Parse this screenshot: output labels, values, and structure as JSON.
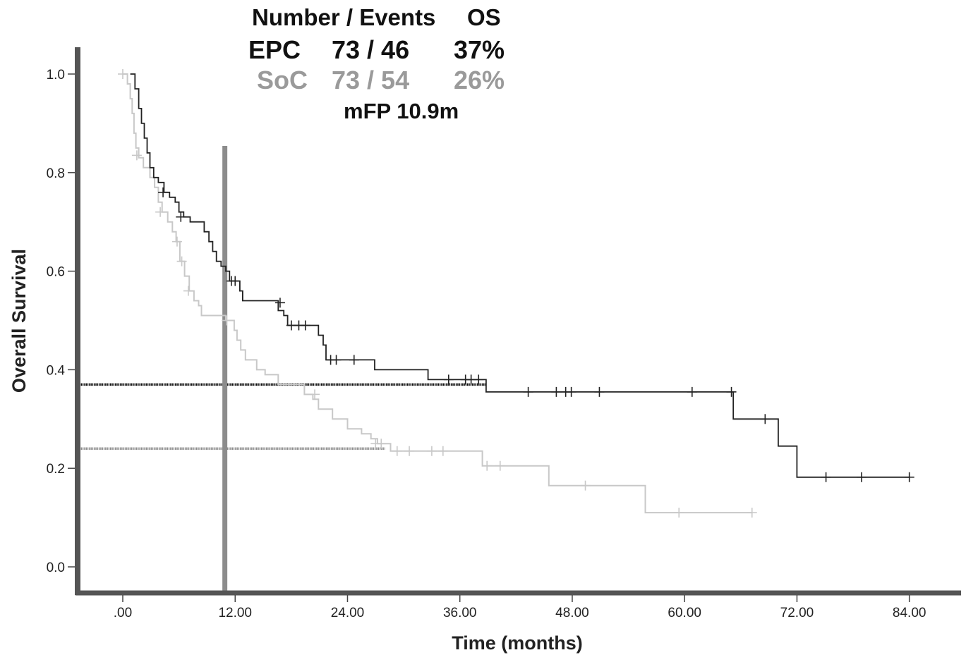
{
  "header": {
    "col_number_events": "Number / Events",
    "col_os": "OS",
    "median_fp": "mFP 10.9m"
  },
  "groups": [
    {
      "name": "EPC",
      "number_events": "73 / 46",
      "os": "37%",
      "color": "#111111"
    },
    {
      "name": "SoC",
      "number_events": "73 / 54",
      "os": "26%",
      "color": "#9a9a9a"
    }
  ],
  "chart_data": {
    "type": "line",
    "subtype": "kaplan-meier step",
    "xlabel": "Time (months)",
    "ylabel": "Overall Survival",
    "xlim": [
      -5,
      86
    ],
    "ylim": [
      -0.06,
      1.07
    ],
    "x_ticks": [
      0,
      12,
      24,
      36,
      48,
      60,
      72,
      84
    ],
    "x_tick_labels": [
      ".00",
      "12.00",
      "24.00",
      "36.00",
      "48.00",
      "60.00",
      "72.00",
      "84.00"
    ],
    "y_ticks": [
      0.0,
      0.2,
      0.4,
      0.6,
      0.8,
      1.0
    ],
    "y_tick_labels": [
      "0.0",
      "0.2",
      "0.4",
      "0.6",
      "0.8",
      "1.0"
    ],
    "grid": false,
    "series": [
      {
        "name": "EPC",
        "color": "#222222",
        "steps": [
          [
            0.8,
            1.0
          ],
          [
            1.3,
            0.97
          ],
          [
            1.7,
            0.93
          ],
          [
            2.0,
            0.9
          ],
          [
            2.3,
            0.87
          ],
          [
            2.6,
            0.84
          ],
          [
            2.9,
            0.81
          ],
          [
            3.3,
            0.79
          ],
          [
            3.8,
            0.78
          ],
          [
            4.4,
            0.76
          ],
          [
            5.0,
            0.75
          ],
          [
            5.6,
            0.74
          ],
          [
            6.0,
            0.72
          ],
          [
            6.5,
            0.71
          ],
          [
            7.2,
            0.7
          ],
          [
            8.7,
            0.68
          ],
          [
            9.2,
            0.66
          ],
          [
            9.6,
            0.64
          ],
          [
            10.0,
            0.62
          ],
          [
            10.5,
            0.61
          ],
          [
            11.0,
            0.6
          ],
          [
            11.4,
            0.58
          ],
          [
            12.5,
            0.56
          ],
          [
            12.8,
            0.54
          ],
          [
            16.6,
            0.52
          ],
          [
            17.2,
            0.51
          ],
          [
            17.6,
            0.49
          ],
          [
            20.9,
            0.47
          ],
          [
            21.4,
            0.45
          ],
          [
            21.7,
            0.42
          ],
          [
            26.9,
            0.4
          ],
          [
            32.6,
            0.38
          ],
          [
            38.8,
            0.355
          ],
          [
            65.2,
            0.3
          ],
          [
            70.0,
            0.245
          ],
          [
            72.0,
            0.182
          ],
          [
            84.0,
            0.182
          ]
        ],
        "censored": [
          [
            4.3,
            0.76
          ],
          [
            6.2,
            0.71
          ],
          [
            11.6,
            0.58
          ],
          [
            12.0,
            0.58
          ],
          [
            16.8,
            0.536
          ],
          [
            18.0,
            0.49
          ],
          [
            18.8,
            0.49
          ],
          [
            19.5,
            0.49
          ],
          [
            22.2,
            0.42
          ],
          [
            22.8,
            0.42
          ],
          [
            24.7,
            0.42
          ],
          [
            34.8,
            0.38
          ],
          [
            36.6,
            0.38
          ],
          [
            37.2,
            0.38
          ],
          [
            38.0,
            0.38
          ],
          [
            43.3,
            0.355
          ],
          [
            46.3,
            0.355
          ],
          [
            47.3,
            0.355
          ],
          [
            47.9,
            0.355
          ],
          [
            50.9,
            0.355
          ],
          [
            60.8,
            0.355
          ],
          [
            65.0,
            0.355
          ],
          [
            68.6,
            0.3
          ],
          [
            75.1,
            0.182
          ],
          [
            78.9,
            0.182
          ],
          [
            84.0,
            0.182
          ]
        ],
        "median_os_line": 0.37
      },
      {
        "name": "SoC",
        "color": "#c8c8c8",
        "steps": [
          [
            0,
            1.0
          ],
          [
            0.5,
            0.98
          ],
          [
            0.8,
            0.95
          ],
          [
            1.0,
            0.92
          ],
          [
            1.2,
            0.88
          ],
          [
            1.4,
            0.85
          ],
          [
            1.7,
            0.83
          ],
          [
            2.2,
            0.81
          ],
          [
            2.9,
            0.79
          ],
          [
            3.4,
            0.77
          ],
          [
            3.8,
            0.74
          ],
          [
            4.2,
            0.72
          ],
          [
            4.8,
            0.7
          ],
          [
            5.3,
            0.68
          ],
          [
            5.7,
            0.66
          ],
          [
            6.1,
            0.62
          ],
          [
            6.6,
            0.59
          ],
          [
            7.1,
            0.56
          ],
          [
            7.6,
            0.54
          ],
          [
            8.1,
            0.53
          ],
          [
            8.4,
            0.51
          ],
          [
            11.0,
            0.5
          ],
          [
            11.9,
            0.48
          ],
          [
            12.2,
            0.46
          ],
          [
            12.6,
            0.44
          ],
          [
            13.1,
            0.42
          ],
          [
            14.3,
            0.4
          ],
          [
            15.2,
            0.39
          ],
          [
            16.6,
            0.37
          ],
          [
            19.4,
            0.35
          ],
          [
            20.3,
            0.34
          ],
          [
            20.9,
            0.32
          ],
          [
            22.4,
            0.3
          ],
          [
            24.0,
            0.28
          ],
          [
            25.5,
            0.27
          ],
          [
            26.5,
            0.26
          ],
          [
            27.2,
            0.25
          ],
          [
            28.6,
            0.235
          ],
          [
            38.4,
            0.205
          ],
          [
            45.5,
            0.165
          ],
          [
            55.8,
            0.11
          ],
          [
            67.2,
            0.11
          ]
        ],
        "censored": [
          [
            0,
            1.0
          ],
          [
            1.5,
            0.835
          ],
          [
            4.0,
            0.72
          ],
          [
            5.8,
            0.66
          ],
          [
            6.3,
            0.62
          ],
          [
            7.0,
            0.56
          ],
          [
            11.1,
            0.5
          ],
          [
            20.5,
            0.35
          ],
          [
            27.0,
            0.25
          ],
          [
            27.6,
            0.25
          ],
          [
            29.3,
            0.235
          ],
          [
            30.6,
            0.235
          ],
          [
            33.0,
            0.235
          ],
          [
            34.2,
            0.235
          ],
          [
            38.9,
            0.205
          ],
          [
            40.3,
            0.205
          ],
          [
            49.4,
            0.165
          ],
          [
            59.4,
            0.11
          ],
          [
            67.2,
            0.11
          ]
        ],
        "median_os_line": 0.24
      }
    ],
    "reference_vertical_x": 10.9
  }
}
